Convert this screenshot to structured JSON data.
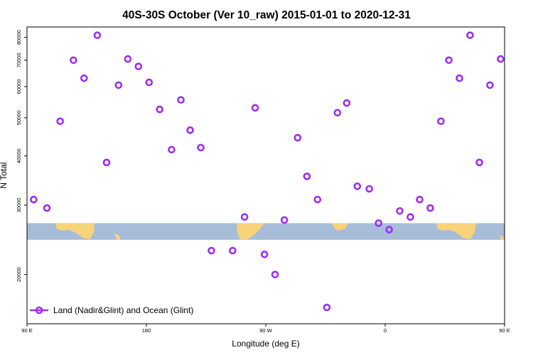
{
  "chart_data": {
    "type": "scatter",
    "title": "40S-30S October (Ver 10_raw)   2015-01-01 to 2020-12-31",
    "xlabel": "Longitude (deg E)",
    "ylabel": "N Total",
    "xlim": [
      90,
      450
    ],
    "ylim": [
      15000,
      85000
    ],
    "y_scale": "log",
    "x_ticks": [
      {
        "value": 90,
        "label": "90 E"
      },
      {
        "value": 180,
        "label": "180"
      },
      {
        "value": 270,
        "label": "90 W"
      },
      {
        "value": 360,
        "label": "0"
      },
      {
        "value": 450,
        "label": "90 E"
      },
      {
        "value": 540,
        "label": "180"
      }
    ],
    "y_ticks": [
      {
        "value": 20000,
        "label": "20000"
      },
      {
        "value": 30000,
        "label": "30000"
      },
      {
        "value": 40000,
        "label": "40000"
      },
      {
        "value": 50000,
        "label": "50000"
      },
      {
        "value": 60000,
        "label": "60000"
      },
      {
        "value": 70000,
        "label": "70000"
      },
      {
        "value": 80000,
        "label": "80000"
      }
    ],
    "grid": false,
    "legend_position": "bottom-left",
    "map_band": {
      "y_from": 24500,
      "y_to": 27000,
      "ocean_color": "#a7bcd9",
      "land_color": "#f7d37a"
    },
    "series": [
      {
        "name": "Land (Nadir&Glint) and Ocean (Glint)",
        "color": "#9b30f0",
        "marker": "open-circle",
        "points": [
          [
            95,
            31000
          ],
          [
            105,
            29500
          ],
          [
            115,
            49000
          ],
          [
            125,
            70000
          ],
          [
            133,
            63000
          ],
          [
            143,
            81000
          ],
          [
            150,
            38500
          ],
          [
            159,
            60500
          ],
          [
            166,
            70500
          ],
          [
            174,
            67500
          ],
          [
            182,
            61500
          ],
          [
            190,
            52500
          ],
          [
            199,
            41500
          ],
          [
            206,
            55500
          ],
          [
            213,
            46500
          ],
          [
            221,
            42000
          ],
          [
            229,
            23000
          ],
          [
            245,
            23000
          ],
          [
            254,
            28000
          ],
          [
            262,
            53000
          ],
          [
            269,
            22500
          ],
          [
            277,
            20000
          ],
          [
            284,
            27500
          ],
          [
            294,
            44500
          ],
          [
            301,
            35500
          ],
          [
            309,
            31000
          ],
          [
            316,
            16500
          ],
          [
            324,
            51500
          ],
          [
            331,
            54500
          ],
          [
            339,
            33500
          ],
          [
            348,
            33000
          ],
          [
            355,
            27000
          ],
          [
            363,
            26000
          ],
          [
            371,
            29000
          ],
          [
            379,
            28000
          ],
          [
            386,
            31000
          ],
          [
            394,
            29500
          ],
          [
            402,
            49000
          ],
          [
            408,
            70000
          ],
          [
            416,
            63000
          ],
          [
            424,
            81000
          ],
          [
            431,
            38500
          ],
          [
            439,
            60500
          ],
          [
            447,
            70500
          ]
        ]
      }
    ]
  }
}
